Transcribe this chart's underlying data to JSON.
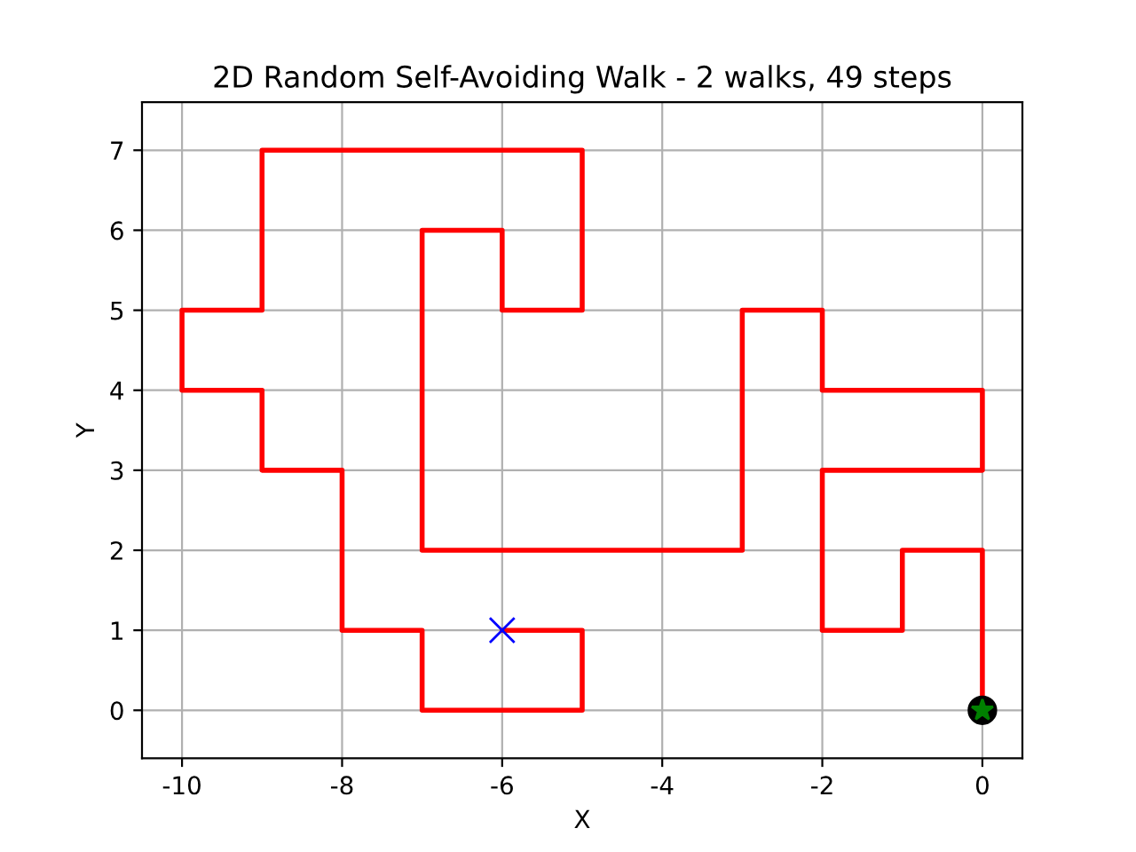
{
  "chart_data": {
    "type": "line",
    "title": "2D Random Self-Avoiding Walk - 2 walks, 49 steps",
    "xlabel": "X",
    "ylabel": "Y",
    "series": [
      {
        "color": "#ff0000",
        "x": [
          0,
          0,
          -1,
          -1,
          -2,
          -2,
          0,
          0,
          -2,
          -2,
          -3,
          -3,
          -7,
          -7,
          -6,
          -6,
          -5,
          -5,
          -9,
          -9,
          -10,
          -10,
          -9,
          -9,
          -8,
          -8,
          -7,
          -7,
          -5,
          -5,
          -6
        ],
        "values": [
          0,
          2,
          2,
          1,
          1,
          3,
          3,
          4,
          4,
          5,
          5,
          2,
          2,
          6,
          6,
          5,
          5,
          7,
          7,
          5,
          5,
          4,
          4,
          3,
          3,
          1,
          1,
          0,
          0,
          1,
          1
        ]
      },
      {
        "type": "scatter",
        "color": "#000000",
        "marker": "circle",
        "x": [
          0
        ],
        "values": [
          0
        ]
      },
      {
        "type": "scatter",
        "color": "#008000",
        "marker": "star",
        "x": [
          0
        ],
        "values": [
          0
        ]
      },
      {
        "type": "scatter",
        "color": "#0000ff",
        "marker": "cross",
        "x": [
          -6
        ],
        "values": [
          1
        ]
      }
    ],
    "xlim": [
      -10.5,
      0.5
    ],
    "ylim": [
      -0.6,
      7.6
    ],
    "xticks": [
      -10,
      -8,
      -6,
      -4,
      -2,
      0
    ],
    "yticks": [
      0,
      1,
      2,
      3,
      4,
      5,
      6,
      7
    ],
    "grid": true
  }
}
